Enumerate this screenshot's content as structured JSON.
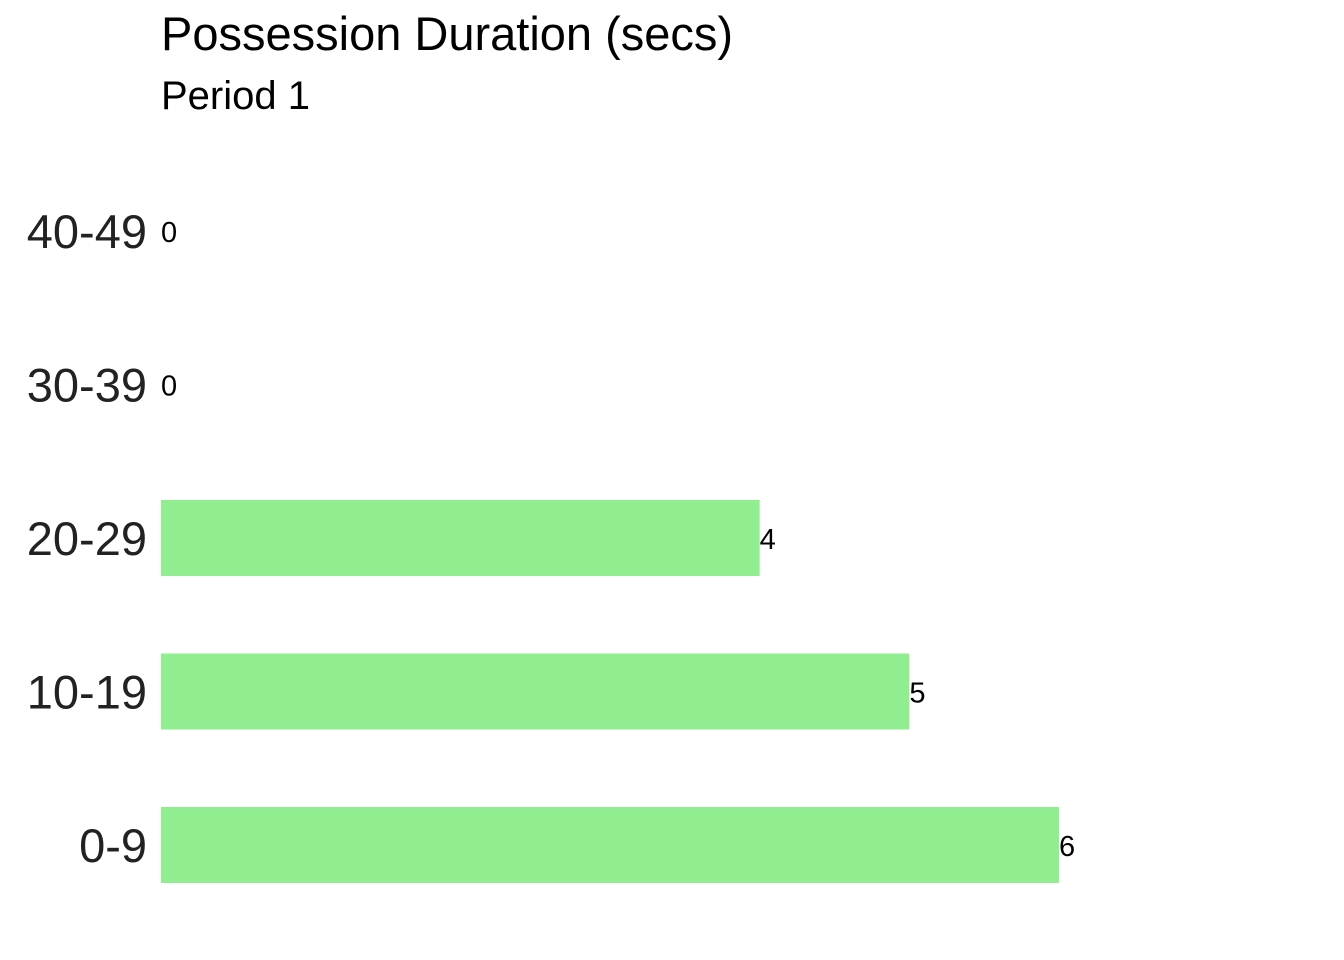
{
  "chart_data": {
    "type": "bar",
    "orientation": "horizontal",
    "title": "Possession Duration (secs)",
    "subtitle": "Period 1",
    "categories": [
      "0-9",
      "10-19",
      "20-29",
      "30-39",
      "40-49"
    ],
    "values": [
      6,
      5,
      4,
      0,
      0
    ],
    "data_labels": [
      "6",
      "5",
      "4",
      "0",
      "0"
    ],
    "xlim": [
      0,
      6
    ],
    "bar_color": "#90EE90",
    "grid": false,
    "legend": "none"
  }
}
